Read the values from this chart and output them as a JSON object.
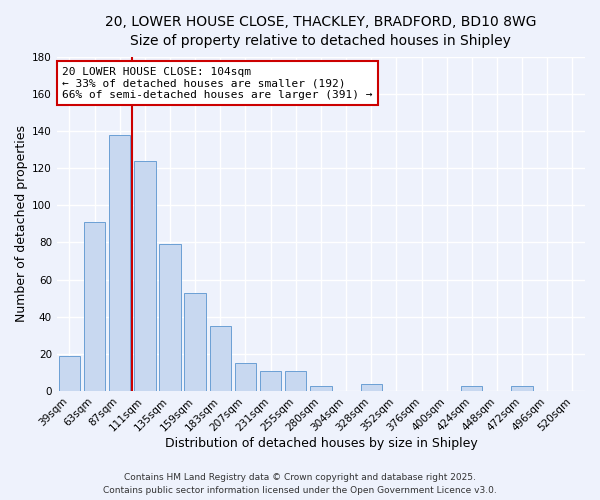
{
  "title_line1": "20, LOWER HOUSE CLOSE, THACKLEY, BRADFORD, BD10 8WG",
  "title_line2": "Size of property relative to detached houses in Shipley",
  "xlabel": "Distribution of detached houses by size in Shipley",
  "ylabel": "Number of detached properties",
  "bar_color": "#c8d8f0",
  "bar_edge_color": "#6b9fd4",
  "background_color": "#eef2fc",
  "grid_color": "#ffffff",
  "categories": [
    "39sqm",
    "63sqm",
    "87sqm",
    "111sqm",
    "135sqm",
    "159sqm",
    "183sqm",
    "207sqm",
    "231sqm",
    "255sqm",
    "280sqm",
    "304sqm",
    "328sqm",
    "352sqm",
    "376sqm",
    "400sqm",
    "424sqm",
    "448sqm",
    "472sqm",
    "496sqm",
    "520sqm"
  ],
  "values": [
    19,
    91,
    138,
    124,
    79,
    53,
    35,
    15,
    11,
    11,
    3,
    0,
    4,
    0,
    0,
    0,
    3,
    0,
    3,
    0,
    0
  ],
  "ylim": [
    0,
    180
  ],
  "yticks": [
    0,
    20,
    40,
    60,
    80,
    100,
    120,
    140,
    160,
    180
  ],
  "vline_x_index": 2.5,
  "vline_color": "#cc0000",
  "annotation_text": "20 LOWER HOUSE CLOSE: 104sqm\n← 33% of detached houses are smaller (192)\n66% of semi-detached houses are larger (391) →",
  "annotation_box_color": "#ffffff",
  "annotation_box_edge": "#cc0000",
  "footer_line1": "Contains HM Land Registry data © Crown copyright and database right 2025.",
  "footer_line2": "Contains public sector information licensed under the Open Government Licence v3.0.",
  "title_fontsize": 10,
  "subtitle_fontsize": 9,
  "axis_label_fontsize": 9,
  "tick_fontsize": 7.5,
  "annotation_fontsize": 8,
  "footer_fontsize": 6.5
}
